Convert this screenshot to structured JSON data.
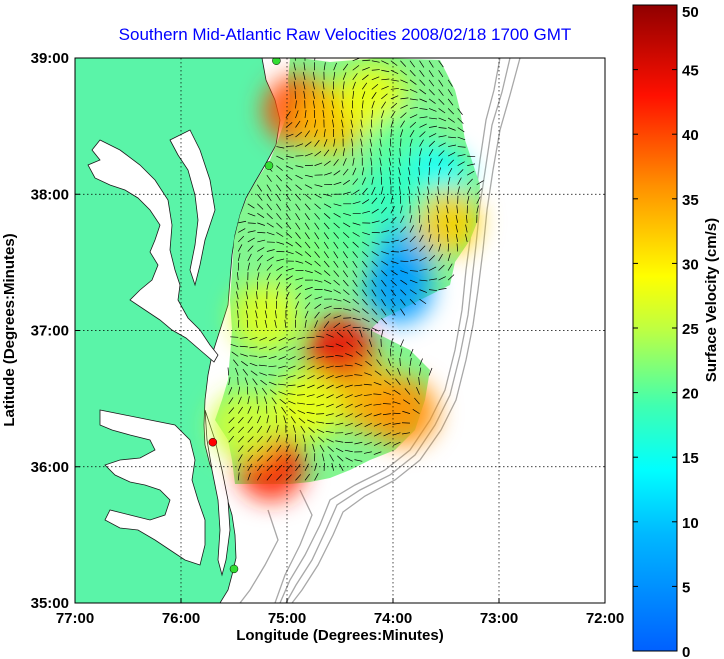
{
  "chart_data": {
    "type": "heatmap",
    "title": "Southern Mid-Atlantic Raw Velocities 2008/02/18 1700 GMT",
    "xlabel": "Longitude (Degrees:Minutes)",
    "ylabel": "Latitude (Degrees:Minutes)",
    "x_ticks": [
      {
        "value": -77,
        "label": "77:00"
      },
      {
        "value": -76,
        "label": "76:00"
      },
      {
        "value": -75,
        "label": "75:00"
      },
      {
        "value": -74,
        "label": "74:00"
      },
      {
        "value": -73,
        "label": "73:00"
      },
      {
        "value": -72,
        "label": "72:00"
      }
    ],
    "y_ticks": [
      {
        "value": 35,
        "label": "35:00"
      },
      {
        "value": 36,
        "label": "36:00"
      },
      {
        "value": 37,
        "label": "37:00"
      },
      {
        "value": 38,
        "label": "38:00"
      },
      {
        "value": 39,
        "label": "39:00"
      }
    ],
    "xlim": [
      -77,
      -72
    ],
    "ylim": [
      35,
      39
    ],
    "grid": true,
    "colorbar": {
      "label": "Surface Velocity (cm/s)",
      "range": [
        0,
        50
      ],
      "ticks": [
        {
          "value": 0,
          "label": "0"
        },
        {
          "value": 5,
          "label": "5"
        },
        {
          "value": 10,
          "label": "10"
        },
        {
          "value": 15,
          "label": "15"
        },
        {
          "value": 20,
          "label": "20"
        },
        {
          "value": 25,
          "label": "25"
        },
        {
          "value": 30,
          "label": "30"
        },
        {
          "value": 35,
          "label": "35"
        },
        {
          "value": 40,
          "label": "40"
        },
        {
          "value": 45,
          "label": "45"
        },
        {
          "value": 50,
          "label": "50"
        }
      ],
      "colormap": "jet"
    },
    "field_regions": [
      {
        "lon": -74.9,
        "lat": 38.62,
        "speed": 40
      },
      {
        "lon": -74.6,
        "lat": 38.55,
        "speed": 33
      },
      {
        "lon": -74.2,
        "lat": 38.7,
        "speed": 28
      },
      {
        "lon": -73.9,
        "lat": 38.35,
        "speed": 20
      },
      {
        "lon": -73.6,
        "lat": 38.1,
        "speed": 14
      },
      {
        "lon": -73.9,
        "lat": 37.6,
        "speed": 8
      },
      {
        "lon": -73.95,
        "lat": 37.3,
        "speed": 6
      },
      {
        "lon": -74.4,
        "lat": 37.75,
        "speed": 20
      },
      {
        "lon": -74.85,
        "lat": 37.5,
        "speed": 22
      },
      {
        "lon": -75.2,
        "lat": 37.1,
        "speed": 27
      },
      {
        "lon": -74.5,
        "lat": 36.85,
        "speed": 44
      },
      {
        "lon": -74.2,
        "lat": 36.5,
        "speed": 34
      },
      {
        "lon": -73.9,
        "lat": 36.4,
        "speed": 36
      },
      {
        "lon": -74.8,
        "lat": 36.45,
        "speed": 28
      },
      {
        "lon": -75.15,
        "lat": 36.0,
        "speed": 42
      },
      {
        "lon": -75.4,
        "lat": 36.3,
        "speed": 26
      },
      {
        "lon": -73.5,
        "lat": 37.8,
        "speed": 32
      },
      {
        "lon": -74.0,
        "lat": 38.0,
        "speed": 18
      }
    ],
    "stations": [
      {
        "lon": -75.1,
        "lat": 38.98,
        "color": "#33dd33"
      },
      {
        "lon": -75.17,
        "lat": 38.21,
        "color": "#33dd33"
      },
      {
        "lon": -75.7,
        "lat": 36.18,
        "color": "#ff0000"
      },
      {
        "lon": -75.5,
        "lat": 35.25,
        "color": "#33dd33"
      }
    ]
  }
}
